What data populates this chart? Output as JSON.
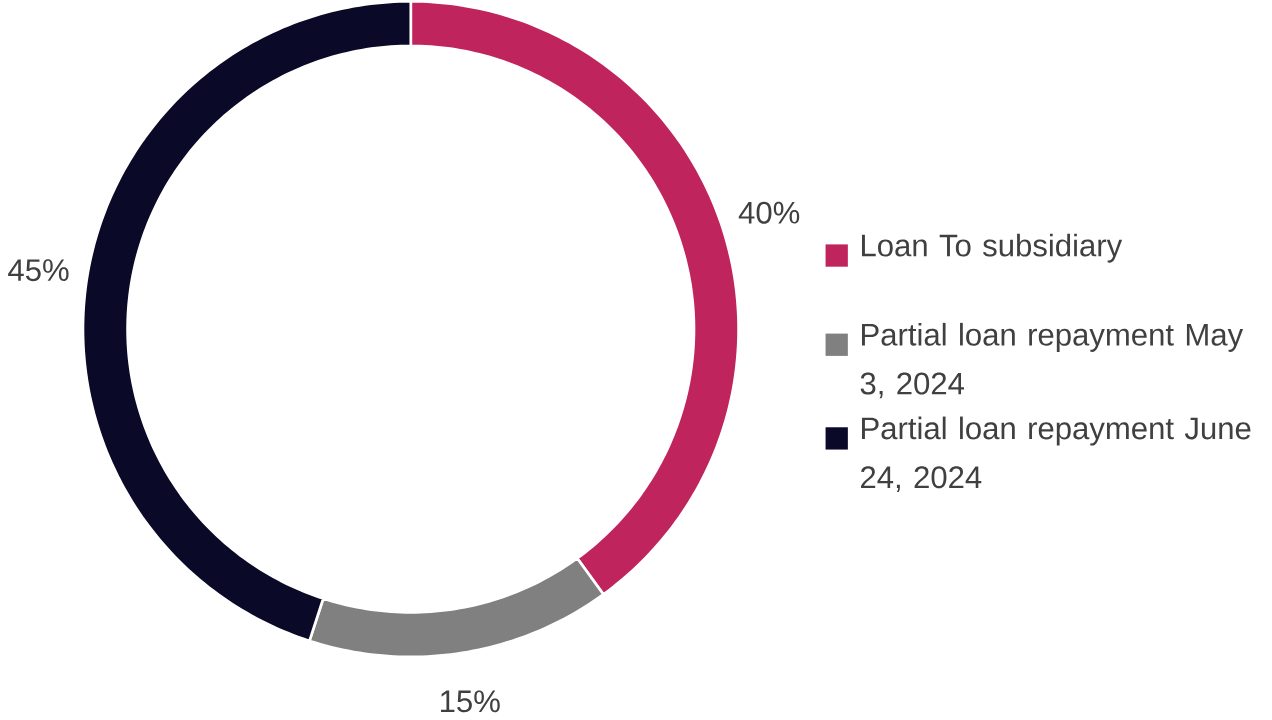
{
  "chart_data": {
    "type": "donut",
    "categories": [
      "Loan To subsidiary",
      "Partial loan repayment May 3, 2024",
      "Partial loan repayment June 24, 2024"
    ],
    "values": [
      40,
      15,
      45
    ],
    "colors": [
      "#c0245c",
      "#808080",
      "#0a0a28"
    ],
    "value_labels": [
      "40%",
      "15%",
      "45%"
    ],
    "legend": "right"
  }
}
